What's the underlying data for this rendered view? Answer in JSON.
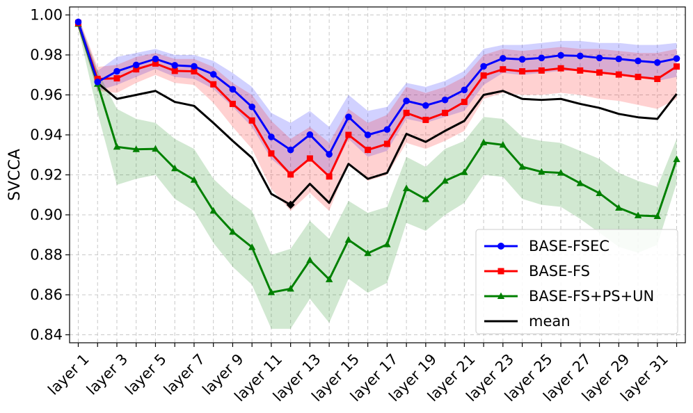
{
  "chart_data": {
    "type": "line",
    "title": "",
    "xlabel": "",
    "ylabel": "SVCCA",
    "ylim": [
      0.836,
      1.004
    ],
    "yticks": [
      0.84,
      0.86,
      0.88,
      0.9,
      0.92,
      0.94,
      0.96,
      0.98,
      1.0
    ],
    "ytick_labels": [
      "0.84",
      "0.86",
      "0.88",
      "0.90",
      "0.92",
      "0.94",
      "0.96",
      "0.98",
      "1.00"
    ],
    "x": [
      1,
      2,
      3,
      4,
      5,
      6,
      7,
      8,
      9,
      10,
      11,
      12,
      13,
      14,
      15,
      16,
      17,
      18,
      19,
      20,
      21,
      22,
      23,
      24,
      25,
      26,
      27,
      28,
      29,
      30,
      31,
      32
    ],
    "xtick_values": [
      1,
      3,
      5,
      7,
      9,
      11,
      13,
      15,
      17,
      19,
      21,
      23,
      25,
      27,
      29,
      31
    ],
    "xtick_labels": [
      "layer 1",
      "layer 3",
      "layer 5",
      "layer 7",
      "layer 9",
      "layer 11",
      "layer 13",
      "layer 15",
      "layer 17",
      "layer 19",
      "layer 21",
      "layer 23",
      "layer 25",
      "layer 27",
      "layer 29",
      "layer 31"
    ],
    "grid": true,
    "legend_position": "lower-right",
    "series": [
      {
        "name": "BASE-FSEC",
        "color": "#0000ff",
        "marker": "circle",
        "values": [
          0.9965,
          0.9665,
          0.9718,
          0.975,
          0.978,
          0.9748,
          0.9743,
          0.9703,
          0.9628,
          0.954,
          0.939,
          0.9325,
          0.9401,
          0.9303,
          0.949,
          0.94,
          0.9427,
          0.957,
          0.9547,
          0.9575,
          0.9625,
          0.9743,
          0.9783,
          0.9778,
          0.9785,
          0.9798,
          0.9795,
          0.9785,
          0.978,
          0.977,
          0.9762,
          0.9782
        ],
        "band_lower": [
          0.994,
          0.962,
          0.965,
          0.969,
          0.973,
          0.969,
          0.968,
          0.963,
          0.954,
          0.944,
          0.928,
          0.92,
          0.929,
          0.918,
          0.938,
          0.929,
          0.932,
          0.948,
          0.946,
          0.949,
          0.952,
          0.965,
          0.971,
          0.97,
          0.971,
          0.972,
          0.972,
          0.971,
          0.97,
          0.969,
          0.967,
          0.969
        ],
        "band_upper": [
          0.999,
          0.972,
          0.979,
          0.981,
          0.983,
          0.98,
          0.98,
          0.977,
          0.971,
          0.964,
          0.951,
          0.946,
          0.952,
          0.944,
          0.96,
          0.952,
          0.954,
          0.966,
          0.964,
          0.967,
          0.972,
          0.983,
          0.985,
          0.985,
          0.986,
          0.987,
          0.987,
          0.986,
          0.986,
          0.985,
          0.985,
          0.986
        ]
      },
      {
        "name": "BASE-FS",
        "color": "#ff0000",
        "marker": "square",
        "values": [
          0.996,
          0.968,
          0.9683,
          0.9728,
          0.9757,
          0.972,
          0.9718,
          0.9653,
          0.9555,
          0.9472,
          0.9307,
          0.9202,
          0.9282,
          0.9192,
          0.94,
          0.9325,
          0.9355,
          0.951,
          0.9475,
          0.951,
          0.9565,
          0.9697,
          0.9728,
          0.9718,
          0.9722,
          0.9733,
          0.9722,
          0.9712,
          0.9702,
          0.969,
          0.968,
          0.9742
        ],
        "band_lower": [
          0.993,
          0.962,
          0.961,
          0.966,
          0.97,
          0.966,
          0.965,
          0.956,
          0.944,
          0.933,
          0.913,
          0.902,
          0.911,
          0.902,
          0.926,
          0.917,
          0.92,
          0.936,
          0.933,
          0.937,
          0.942,
          0.958,
          0.961,
          0.96,
          0.96,
          0.961,
          0.96,
          0.958,
          0.957,
          0.955,
          0.953,
          0.958
        ],
        "band_upper": [
          0.999,
          0.974,
          0.975,
          0.979,
          0.981,
          0.978,
          0.978,
          0.974,
          0.966,
          0.96,
          0.947,
          0.938,
          0.944,
          0.936,
          0.953,
          0.946,
          0.95,
          0.964,
          0.961,
          0.964,
          0.969,
          0.98,
          0.983,
          0.982,
          0.983,
          0.984,
          0.983,
          0.983,
          0.982,
          0.981,
          0.981,
          0.983
        ]
      },
      {
        "name": "BASE-FS+PS+UN",
        "color": "#008000",
        "marker": "triangle",
        "values": [
          0.9955,
          0.9655,
          0.934,
          0.9328,
          0.933,
          0.9232,
          0.9175,
          0.902,
          0.8915,
          0.8838,
          0.8612,
          0.863,
          0.8773,
          0.8677,
          0.8875,
          0.8808,
          0.8852,
          0.9132,
          0.9078,
          0.917,
          0.9213,
          0.9362,
          0.935,
          0.924,
          0.9215,
          0.921,
          0.9158,
          0.9108,
          0.9035,
          0.8997,
          0.8993,
          0.9278
        ],
        "band_lower": [
          0.993,
          0.951,
          0.915,
          0.918,
          0.92,
          0.908,
          0.902,
          0.886,
          0.874,
          0.865,
          0.843,
          0.843,
          0.858,
          0.846,
          0.868,
          0.861,
          0.866,
          0.896,
          0.892,
          0.9,
          0.906,
          0.92,
          0.919,
          0.908,
          0.905,
          0.904,
          0.898,
          0.891,
          0.884,
          0.881,
          0.885,
          0.916
        ],
        "band_upper": [
          0.998,
          0.972,
          0.953,
          0.948,
          0.946,
          0.938,
          0.933,
          0.918,
          0.909,
          0.902,
          0.88,
          0.883,
          0.897,
          0.888,
          0.907,
          0.901,
          0.904,
          0.929,
          0.924,
          0.933,
          0.937,
          0.949,
          0.948,
          0.939,
          0.937,
          0.936,
          0.932,
          0.928,
          0.921,
          0.917,
          0.914,
          0.938
        ]
      },
      {
        "name": "mean",
        "color": "#000000",
        "marker": "none",
        "values": [
          0.9955,
          0.966,
          0.958,
          0.96,
          0.962,
          0.9565,
          0.9545,
          0.946,
          0.937,
          0.9285,
          0.9105,
          0.905,
          0.9155,
          0.906,
          0.9255,
          0.918,
          0.921,
          0.9405,
          0.9365,
          0.942,
          0.947,
          0.96,
          0.962,
          0.958,
          0.9575,
          0.958,
          0.9555,
          0.9535,
          0.9505,
          0.9488,
          0.948,
          0.9605
        ],
        "min_marker_x": 12,
        "min_marker_y": 0.905
      }
    ]
  }
}
